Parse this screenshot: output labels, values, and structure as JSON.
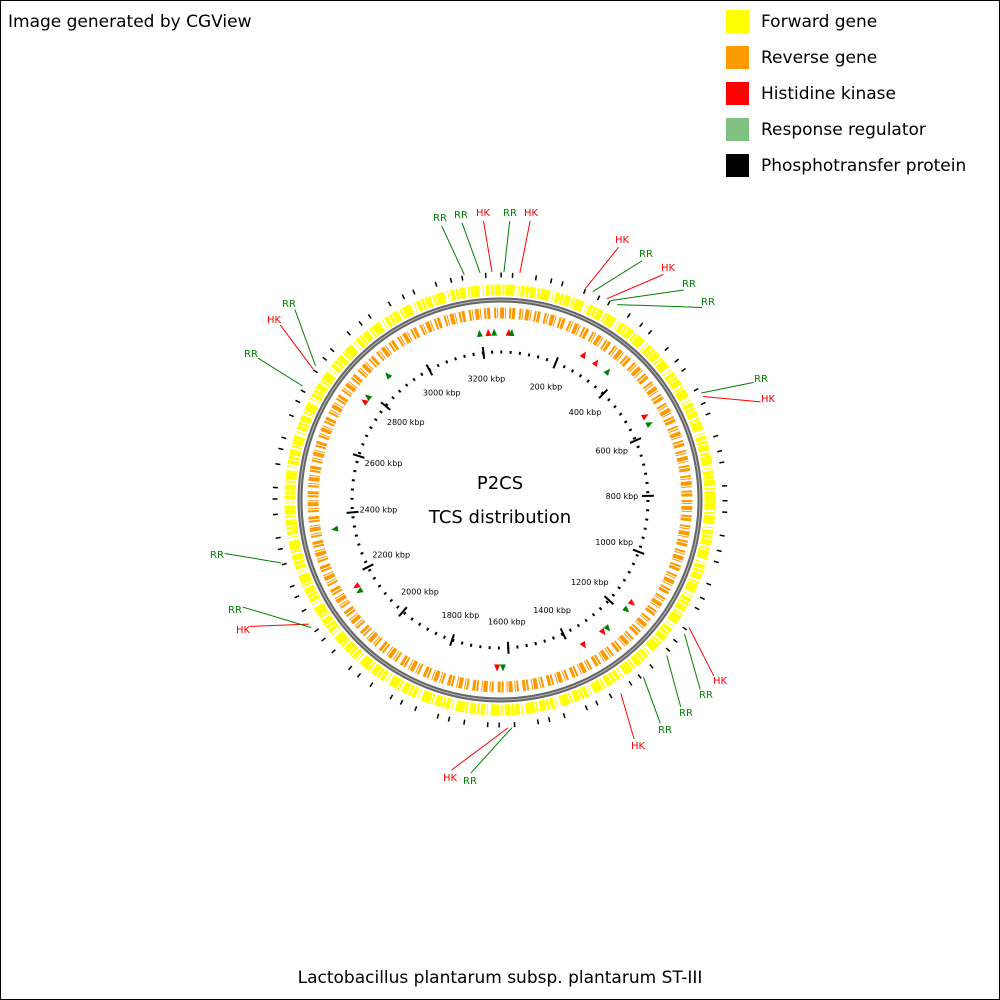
{
  "header": {
    "text": "Image generated by CGView"
  },
  "legend": [
    {
      "label": "Forward gene",
      "color": "#ffff00"
    },
    {
      "label": "Reverse gene",
      "color": "#ff9900"
    },
    {
      "label": "Histidine kinase",
      "color": "#ff0000"
    },
    {
      "label": "Response regulator",
      "color": "#80c080"
    },
    {
      "label": "Phosphotransfer protein",
      "color": "#000000"
    }
  ],
  "center": {
    "title": "P2CS",
    "subtitle": "TCS distribution"
  },
  "ticks": [
    "200 kbp",
    "400 kbp",
    "600 kbp",
    "800 kbp",
    "1000 kbp",
    "1200 kbp",
    "1400 kbp",
    "1600 kbp",
    "1800 kbp",
    "2000 kbp",
    "2200 kbp",
    "2400 kbp",
    "2600 kbp",
    "2800 kbp",
    "3000 kbp",
    "3200 kbp"
  ],
  "annotations": [
    "RR",
    "RR",
    "HK",
    "RR",
    "HK",
    "HK",
    "RR",
    "HK",
    "RR",
    "RR",
    "RR",
    "HK",
    "HK",
    "RR",
    "RR",
    "RR",
    "HK",
    "RR",
    "HK",
    "HK",
    "RR",
    "RR",
    "RR",
    "HK",
    "RR"
  ],
  "footer": "Lactobacillus plantarum subsp. plantarum ST-III"
}
